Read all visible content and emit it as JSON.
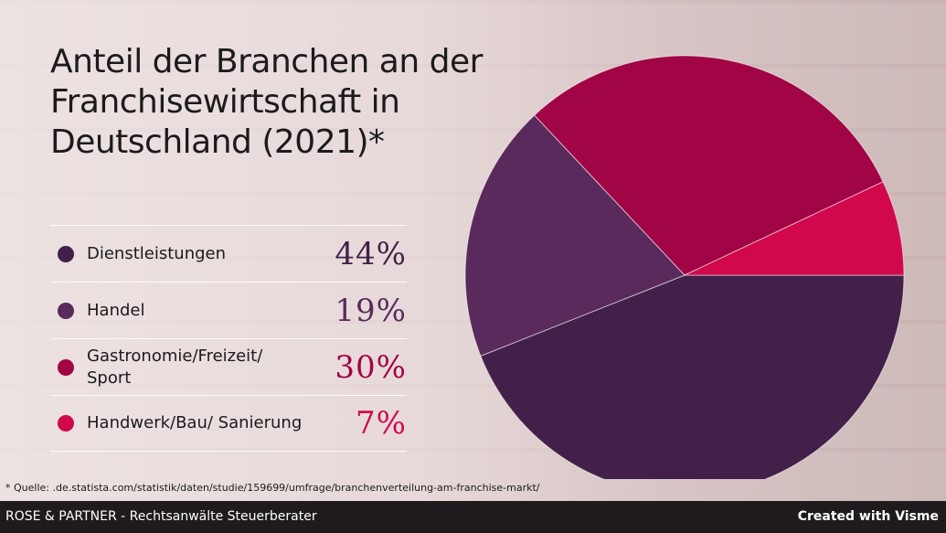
{
  "title": "Anteil der Branchen an der Franchisewirtschaft in Deutschland (2021)*",
  "source": "* Quelle: .de.statista.com/statistik/daten/studie/159699/umfrage/branchenverteilung-am-franchise-markt/",
  "footer": {
    "left": "ROSE & PARTNER - Rechtsanwälte Steuerberater",
    "right": "Created with Visme"
  },
  "colors": {
    "Dienstleistungen": "#42204a",
    "Handel": "#5a2a5c",
    "Gastronomie": "#a10545",
    "Handwerk": "#d1084c"
  },
  "chart_data": {
    "type": "pie",
    "title": "Anteil der Branchen an der Franchisewirtschaft in Deutschland (2021)*",
    "categories": [
      "Dienstleistungen",
      "Handel",
      "Gastronomie/Freizeit/ Sport",
      "Handwerk/Bau/ Sanierung"
    ],
    "values": [
      44,
      19,
      30,
      7
    ],
    "value_labels": [
      "44%",
      "19%",
      "30%",
      "7%"
    ],
    "colors": [
      "#42204a",
      "#5a2a5c",
      "#a10545",
      "#d1084c"
    ],
    "legend": "left"
  }
}
